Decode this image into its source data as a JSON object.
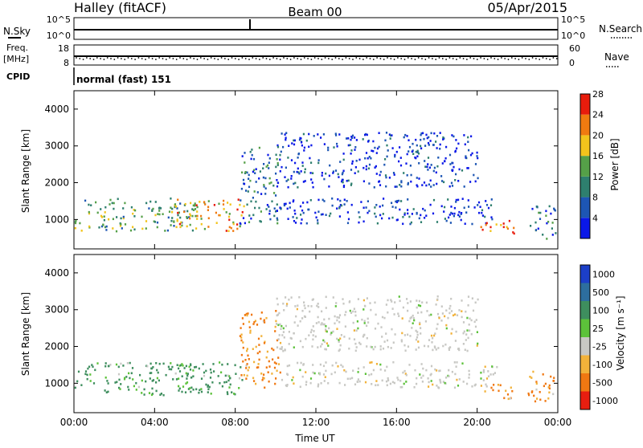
{
  "header": {
    "station": "Halley (fitACF)",
    "beam": "Beam 00",
    "date": "05/Apr/2015"
  },
  "status_panels": {
    "nsky_label": "N.Sky",
    "nsky_ticks": [
      "10^5",
      "10^0"
    ],
    "nsearch_label": "N.Search",
    "nsearch_ticks": [
      "10^5",
      "10^0"
    ],
    "freq_label_1": "Freq.",
    "freq_label_2": "[MHz]",
    "freq_ticks": [
      "18",
      "8"
    ],
    "nave_label": "Nave",
    "nave_ticks": [
      "60",
      "0"
    ],
    "cpid_label": "CPID",
    "cpid_value": "normal (fast) 151"
  },
  "chart_data": [
    {
      "type": "heatmap",
      "panel": "power",
      "title": "",
      "ylabel": "Slant Range [km]",
      "xlabel": "",
      "xlim_hours": [
        0,
        24
      ],
      "ylim_km": [
        200,
        4500
      ],
      "yticks": [
        1000,
        2000,
        3000,
        4000
      ],
      "colorbar": {
        "label": "Power [dB]",
        "ticks": [
          4,
          8,
          12,
          16,
          20,
          24,
          28
        ],
        "colors": [
          "#0a18e8",
          "#1d56b4",
          "#2e7f6e",
          "#55a048",
          "#f2c41c",
          "#f07a10",
          "#e81c0c"
        ]
      },
      "echo_regions": [
        {
          "t_start": 0.0,
          "t_end": 6.0,
          "r_low": 700,
          "r_high": 1600,
          "level": 16
        },
        {
          "t_start": 5.0,
          "t_end": 8.4,
          "r_low": 700,
          "r_high": 1600,
          "level": 24
        },
        {
          "t_start": 8.2,
          "t_end": 10.2,
          "r_low": 900,
          "r_high": 3000,
          "level": 12
        },
        {
          "t_start": 10.0,
          "t_end": 21.0,
          "r_low": 900,
          "r_high": 1600,
          "level": 8
        },
        {
          "t_start": 10.0,
          "t_end": 20.0,
          "r_low": 1900,
          "r_high": 3400,
          "level": 8
        },
        {
          "t_start": 20.0,
          "t_end": 21.8,
          "r_low": 600,
          "r_high": 1000,
          "level": 28
        },
        {
          "t_start": 22.5,
          "t_end": 24.0,
          "r_low": 500,
          "r_high": 1400,
          "level": 12
        }
      ]
    },
    {
      "type": "heatmap",
      "panel": "velocity",
      "title": "",
      "ylabel": "Slant Range [km]",
      "xlabel": "Time UT",
      "xlim_hours": [
        0,
        24
      ],
      "ylim_km": [
        200,
        4500
      ],
      "yticks": [
        1000,
        2000,
        3000,
        4000
      ],
      "xticks": [
        "00:00",
        "04:00",
        "08:00",
        "12:00",
        "16:00",
        "20:00",
        "00:00"
      ],
      "colorbar": {
        "label": "Velocity [m s⁻¹]",
        "ticks": [
          "1000",
          "500",
          "100",
          "25",
          "-25",
          "-100",
          "-500",
          "-1000"
        ],
        "colors": [
          "#1c3fc8",
          "#2d6e9e",
          "#3e8e5e",
          "#5cc23a",
          "#c8c8c4",
          "#f2b23a",
          "#f07812",
          "#e81e10"
        ]
      },
      "echo_regions": [
        {
          "t_start": 0.0,
          "t_end": 6.0,
          "r_low": 700,
          "r_high": 1600,
          "velocity": 100
        },
        {
          "t_start": 5.0,
          "t_end": 8.4,
          "r_low": 700,
          "r_high": 1600,
          "velocity": 100
        },
        {
          "t_start": 8.2,
          "t_end": 10.2,
          "r_low": 900,
          "r_high": 3000,
          "velocity": -100
        },
        {
          "t_start": 10.0,
          "t_end": 21.0,
          "r_low": 900,
          "r_high": 1600,
          "velocity": 0
        },
        {
          "t_start": 10.0,
          "t_end": 20.0,
          "r_low": 1900,
          "r_high": 3400,
          "velocity": 0
        },
        {
          "t_start": 20.0,
          "t_end": 21.8,
          "r_low": 600,
          "r_high": 1000,
          "velocity": -100
        },
        {
          "t_start": 22.5,
          "t_end": 24.0,
          "r_low": 500,
          "r_high": 1400,
          "velocity": -100
        }
      ]
    }
  ]
}
